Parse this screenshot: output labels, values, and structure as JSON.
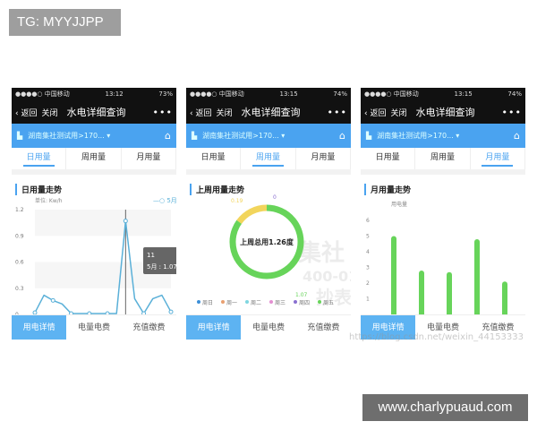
{
  "tag": "TG: MYYJJPP",
  "site": "www.charlypuaud.com",
  "watermark": "https://blog.csdn.net/weixin_44153333",
  "stamp": {
    "top": "集社",
    "mid": "400-012-3295",
    "bot": "抄表"
  },
  "phones": [
    {
      "carrier": "●●●●○ 中国移动",
      "time": "13:12",
      "battery": "73%",
      "back": "返回",
      "close": "关闭",
      "title": "水电详细查询",
      "more": "•••",
      "location": "湖南集社测试用>170... ▾",
      "tabs": [
        "日用量",
        "周用量",
        "月用量"
      ],
      "active_tab": 0,
      "section": "日用量走势",
      "bottom": [
        "用电详情",
        "电量电费",
        "充值缴费"
      ]
    },
    {
      "carrier": "●●●●○ 中国移动",
      "time": "13:15",
      "battery": "74%",
      "back": "返回",
      "close": "关闭",
      "title": "水电详细查询",
      "more": "•••",
      "location": "湖南集社测试用>170... ▾",
      "tabs": [
        "日用量",
        "周用量",
        "月用量"
      ],
      "active_tab": 1,
      "section": "上周用量走势",
      "bottom": [
        "用电详情",
        "电量电费",
        "充值缴费"
      ]
    },
    {
      "carrier": "●●●●○ 中国移动",
      "time": "13:15",
      "battery": "74%",
      "back": "返回",
      "close": "关闭",
      "title": "水电详细查询",
      "more": "•••",
      "location": "湖南集社测试用>170... ▾",
      "tabs": [
        "日用量",
        "周用量",
        "月用量"
      ],
      "active_tab": 2,
      "section": "月用量走势",
      "bottom": [
        "用电详情",
        "电量电费",
        "充值缴费"
      ]
    }
  ],
  "accent": "#4aa3f0",
  "chart_data": [
    {
      "type": "line",
      "unit_label": "单位: Kw/h",
      "legend": "5月",
      "x": [
        1,
        2,
        3,
        4,
        5,
        6,
        7,
        8,
        9,
        10,
        11,
        12,
        13,
        14,
        15,
        16
      ],
      "values": [
        0.02,
        0.22,
        0.16,
        0.12,
        0.01,
        0.01,
        0.01,
        0.01,
        0.01,
        0.01,
        1.07,
        0.18,
        0.01,
        0.18,
        0.22,
        0.03
      ],
      "xticks": [
        "1",
        "3",
        "5",
        "7",
        "9",
        "11",
        "13",
        "15"
      ],
      "yticks": [
        "0",
        "0.3",
        "0.6",
        "0.9",
        "1.2"
      ],
      "ylim": [
        0,
        1.2
      ],
      "tooltip": {
        "title": "11",
        "text": "5月 : 1.07"
      },
      "color": "#5ab0d8"
    },
    {
      "type": "pie",
      "center_text": "上周总用1.26度",
      "labels": [
        "周日",
        "周一",
        "周二",
        "周三",
        "周四",
        "周五"
      ],
      "colors": [
        "#3c8fd8",
        "#e8a070",
        "#7fd6e0",
        "#e38fd0",
        "#8a6fd0",
        "#67d45a"
      ],
      "slices": [
        {
          "value": 0.19,
          "color": "#f2d55c"
        },
        {
          "value": 0,
          "color": "#8a6fd0"
        },
        {
          "value": 1.07,
          "color": "#67d45a"
        }
      ]
    },
    {
      "type": "bar",
      "ylabel": "用电量",
      "values": [
        5,
        2.8,
        2.7,
        4.8,
        2.1
      ],
      "yticks": [
        "1",
        "2",
        "3",
        "4",
        "5",
        "6"
      ],
      "ylim": [
        0,
        6
      ],
      "color": "#67d45a"
    }
  ]
}
